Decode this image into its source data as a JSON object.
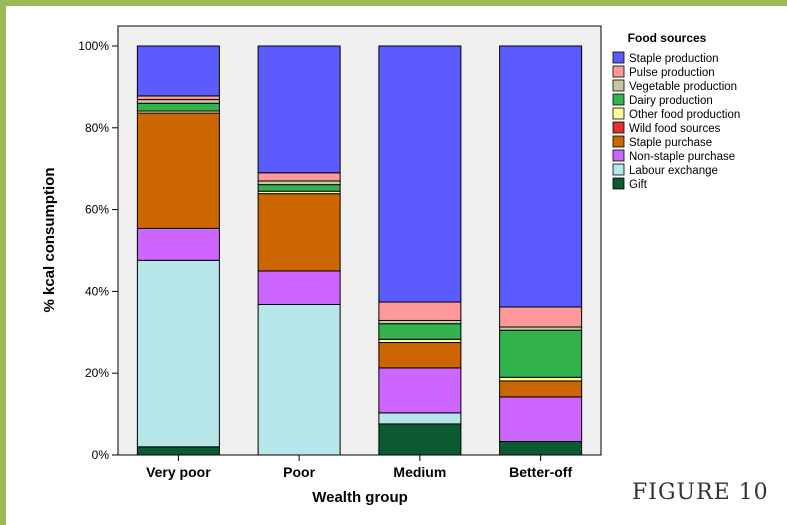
{
  "figure_label": "FIGURE 10",
  "chart_data": {
    "type": "bar",
    "stacked": true,
    "xlabel": "Wealth group",
    "ylabel": "% kcal consumption",
    "ylim": [
      0,
      100
    ],
    "yticks": [
      "0%",
      "20%",
      "40%",
      "60%",
      "80%",
      "100%"
    ],
    "grid": false,
    "legend_title": "Food sources",
    "legend_position": "right",
    "categories": [
      "Very poor",
      "Poor",
      "Medium",
      "Better-off"
    ],
    "series": [
      {
        "name": "Gift",
        "color": "#0c5a31",
        "values": [
          2.0,
          0.0,
          7.6,
          3.3
        ]
      },
      {
        "name": "Labour exchange",
        "color": "#b6e6ea",
        "values": [
          45.6,
          36.8,
          2.7,
          0.0
        ]
      },
      {
        "name": "Non-staple purchase",
        "color": "#cc66ff",
        "values": [
          7.8,
          8.2,
          11.0,
          10.9
        ]
      },
      {
        "name": "Staple purchase",
        "color": "#cc6600",
        "values": [
          28.2,
          18.9,
          6.2,
          3.9
        ]
      },
      {
        "name": "Wild food sources",
        "color": "#e63030",
        "values": [
          0.0,
          0.0,
          0.0,
          0.0
        ]
      },
      {
        "name": "Other food production",
        "color": "#ffff99",
        "values": [
          0.5,
          0.6,
          0.8,
          0.9
        ]
      },
      {
        "name": "Dairy production",
        "color": "#33b34d",
        "values": [
          1.9,
          1.6,
          3.8,
          11.5
        ]
      },
      {
        "name": "Vegetable production",
        "color": "#c8c8a0",
        "values": [
          0.9,
          0.9,
          0.8,
          0.8
        ]
      },
      {
        "name": "Pulse production",
        "color": "#ff9999",
        "values": [
          0.9,
          2.0,
          4.5,
          4.9
        ]
      },
      {
        "name": "Staple production",
        "color": "#5b5bff",
        "values": [
          12.2,
          31.0,
          62.6,
          63.8
        ]
      }
    ],
    "legend_order": [
      "Staple production",
      "Pulse production",
      "Vegetable production",
      "Dairy production",
      "Other food production",
      "Wild food sources",
      "Staple purchase",
      "Non-staple purchase",
      "Labour exchange",
      "Gift"
    ]
  }
}
